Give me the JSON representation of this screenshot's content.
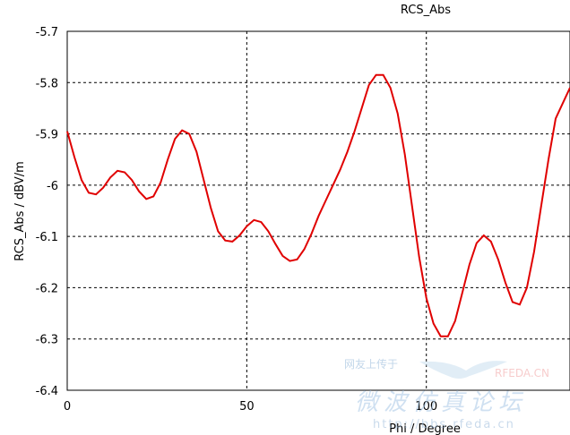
{
  "chart_data": {
    "type": "line",
    "title": "RCS_Abs",
    "xlabel": "Phi / Degree",
    "ylabel": "RCS_Abs / dBV/m",
    "xlim": [
      0,
      140
    ],
    "ylim": [
      -6.4,
      -5.7
    ],
    "x_ticks": [
      0,
      50,
      100
    ],
    "y_ticks": [
      -5.7,
      -5.8,
      -5.9,
      -6,
      -6.1,
      -6.2,
      -6.3,
      -6.4
    ],
    "x_tick_labels": [
      "0",
      "50",
      "100"
    ],
    "y_tick_labels": [
      "-5.7",
      "-5.8",
      "-5.9",
      "-6",
      "-6.1",
      "-6.2",
      "-6.3",
      "-6.4"
    ],
    "grid": true,
    "series": [
      {
        "color": "#e00000",
        "x": [
          0,
          2,
          4,
          6,
          8,
          10,
          12,
          14,
          16,
          18,
          20,
          22,
          24,
          26,
          28,
          30,
          32,
          34,
          36,
          38,
          40,
          42,
          44,
          46,
          48,
          50,
          52,
          54,
          56,
          58,
          60,
          62,
          64,
          66,
          68,
          70,
          72,
          74,
          76,
          78,
          80,
          82,
          84,
          86,
          88,
          90,
          92,
          94,
          96,
          98,
          100,
          102,
          104,
          106,
          108,
          110,
          112,
          114,
          116,
          118,
          120,
          122,
          124,
          126,
          128,
          130,
          132,
          134,
          136,
          138,
          140
        ],
        "y": [
          -5.895,
          -5.945,
          -5.99,
          -6.015,
          -6.018,
          -6.005,
          -5.985,
          -5.972,
          -5.975,
          -5.99,
          -6.012,
          -6.027,
          -6.022,
          -5.995,
          -5.95,
          -5.91,
          -5.893,
          -5.9,
          -5.935,
          -5.99,
          -6.045,
          -6.09,
          -6.108,
          -6.11,
          -6.098,
          -6.08,
          -6.068,
          -6.072,
          -6.09,
          -6.115,
          -6.138,
          -6.148,
          -6.145,
          -6.125,
          -6.095,
          -6.06,
          -6.03,
          -6.0,
          -5.97,
          -5.935,
          -5.895,
          -5.85,
          -5.805,
          -5.785,
          -5.785,
          -5.81,
          -5.86,
          -5.94,
          -6.04,
          -6.14,
          -6.22,
          -6.27,
          -6.295,
          -6.295,
          -6.265,
          -6.21,
          -6.155,
          -6.113,
          -6.098,
          -6.11,
          -6.145,
          -6.19,
          -6.228,
          -6.233,
          -6.2,
          -6.13,
          -6.04,
          -5.95,
          -5.87,
          -5.84,
          -5.81
        ]
      }
    ]
  },
  "watermark": {
    "line1": "网友上传于",
    "brand": "RFEDA.CN",
    "cn_text": "微波仿真论坛",
    "url": "http://bbs.rfeda.cn"
  }
}
